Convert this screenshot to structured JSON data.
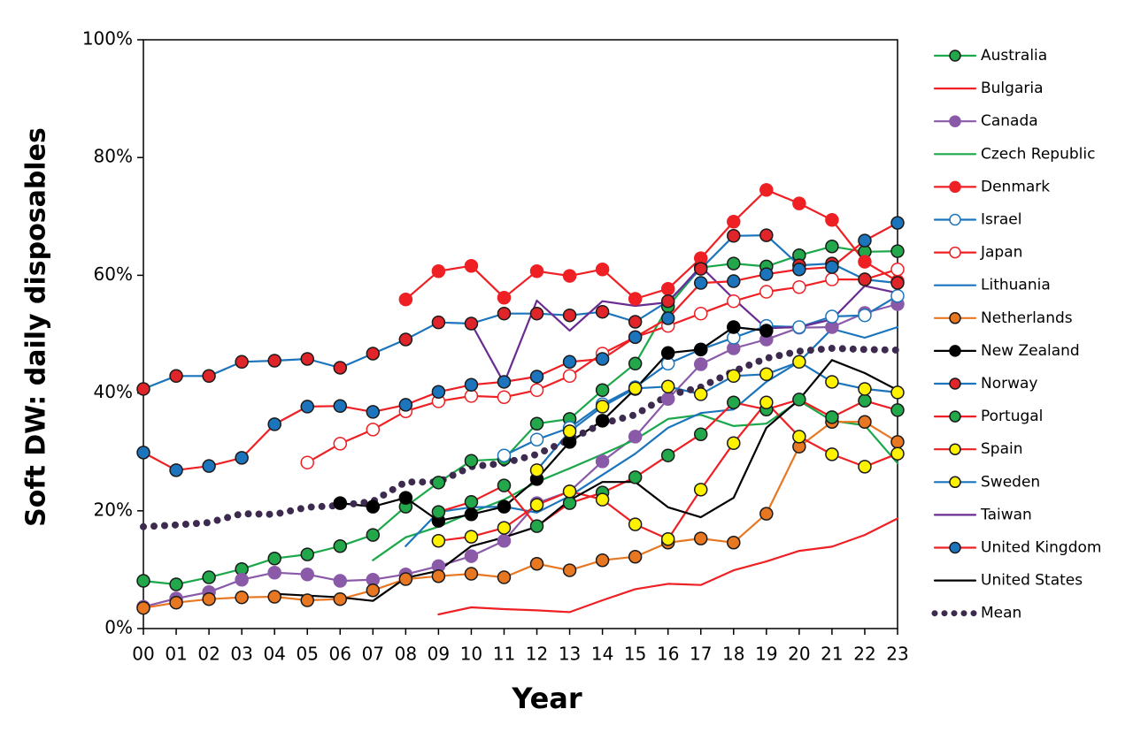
{
  "chart_data": {
    "type": "line",
    "y_label": "Soft DW: daily disposables",
    "x_label": "Year",
    "categories": [
      "00",
      "01",
      "02",
      "03",
      "04",
      "05",
      "06",
      "07",
      "08",
      "09",
      "10",
      "11",
      "12",
      "13",
      "14",
      "15",
      "16",
      "17",
      "18",
      "19",
      "20",
      "21",
      "22",
      "23"
    ],
    "ylim": [
      0,
      100
    ],
    "yticks": [
      {
        "value": 0,
        "label": "0%"
      },
      {
        "value": 20,
        "label": "20%"
      },
      {
        "value": 40,
        "label": "40%"
      },
      {
        "value": 60,
        "label": "60%"
      },
      {
        "value": 80,
        "label": "80%"
      },
      {
        "value": 100,
        "label": "100%"
      }
    ],
    "legend": "right",
    "series": [
      {
        "name": "Australia",
        "color": "#1ba84a",
        "marker": {
          "fill": "#22a84b",
          "stroke": "#1a1a1a"
        },
        "values": [
          8.1,
          7.5,
          8.7,
          10.1,
          11.9,
          12.6,
          14.0,
          15.9,
          20.7,
          24.8,
          28.5,
          28.8,
          34.8,
          35.6,
          40.5,
          45.0,
          54.7,
          61.3,
          62.0,
          61.5,
          63.4,
          64.9,
          64.0,
          64.1
        ]
      },
      {
        "name": "Bulgaria",
        "color": "#ee2024",
        "marker": null,
        "values": [
          null,
          null,
          null,
          null,
          null,
          null,
          null,
          null,
          null,
          2.4,
          3.6,
          3.3,
          3.1,
          2.8,
          4.8,
          6.7,
          7.6,
          7.4,
          9.9,
          11.4,
          13.2,
          13.9,
          15.9,
          18.7
        ]
      },
      {
        "name": "Canada",
        "color": "#8a5aa8",
        "marker": {
          "fill": "#8a5aa8",
          "stroke": "#8a5aa8"
        },
        "values": [
          3.7,
          5.1,
          6.2,
          8.3,
          9.5,
          9.2,
          8.1,
          8.3,
          9.2,
          10.6,
          12.3,
          14.9,
          21.3,
          23.3,
          28.4,
          32.6,
          39.0,
          44.9,
          47.6,
          49.1,
          51.1,
          51.2,
          53.6,
          55.1
        ]
      },
      {
        "name": "Czech Republic",
        "color": "#1ba84a",
        "marker": null,
        "values": [
          null,
          null,
          null,
          null,
          null,
          null,
          null,
          11.6,
          15.5,
          17.3,
          19.7,
          21.9,
          24.9,
          27.2,
          29.6,
          32.1,
          35.6,
          36.3,
          34.4,
          34.8,
          38.7,
          35.3,
          34.5,
          28.1
        ]
      },
      {
        "name": "Denmark",
        "color": "#ee2024",
        "marker": {
          "fill": "#ee2024",
          "stroke": "#ee2024"
        },
        "values": [
          null,
          null,
          null,
          null,
          null,
          null,
          null,
          null,
          55.9,
          60.7,
          61.6,
          56.2,
          60.7,
          59.9,
          61.0,
          56.0,
          57.7,
          62.9,
          69.1,
          74.5,
          72.2,
          69.4,
          62.3,
          59.0
        ]
      },
      {
        "name": "Israel",
        "color": "#1c75bc",
        "marker": {
          "fill": "#ffffff",
          "stroke": "#1c75bc"
        },
        "values": [
          null,
          null,
          null,
          null,
          null,
          null,
          null,
          null,
          null,
          null,
          null,
          29.4,
          32.1,
          34.1,
          38.1,
          41.0,
          45.0,
          47.4,
          49.4,
          51.4,
          51.2,
          53.0,
          53.2,
          56.5
        ]
      },
      {
        "name": "Japan",
        "color": "#ee2024",
        "marker": {
          "fill": "#ffffff",
          "stroke": "#ee2024"
        },
        "values": [
          null,
          null,
          null,
          null,
          null,
          28.2,
          31.4,
          33.8,
          36.9,
          38.6,
          39.5,
          39.3,
          40.5,
          42.9,
          46.7,
          49.5,
          51.4,
          53.5,
          55.6,
          57.2,
          58.0,
          59.3,
          59.3,
          61.0
        ]
      },
      {
        "name": "Lithuania",
        "color": "#1c75bc",
        "marker": null,
        "values": [
          null,
          null,
          null,
          null,
          null,
          null,
          null,
          null,
          14.0,
          19.8,
          20.6,
          20.7,
          19.7,
          22.5,
          26.1,
          29.7,
          34.1,
          36.6,
          37.2,
          41.9,
          45.3,
          50.9,
          49.4,
          51.2
        ]
      },
      {
        "name": "Netherlands",
        "color": "#e87722",
        "marker": {
          "fill": "#e87722",
          "stroke": "#1a1a1a"
        },
        "values": [
          3.5,
          4.4,
          5.0,
          5.3,
          5.4,
          4.8,
          5.0,
          6.5,
          8.4,
          8.9,
          9.3,
          8.7,
          11.0,
          9.9,
          11.6,
          12.2,
          14.6,
          15.3,
          14.6,
          19.5,
          30.9,
          35.1,
          35.1,
          31.7
        ]
      },
      {
        "name": "New Zealand",
        "color": "#000000",
        "marker": {
          "fill": "#000000",
          "stroke": "#000000"
        },
        "values": [
          null,
          null,
          null,
          null,
          null,
          null,
          21.3,
          20.7,
          22.2,
          18.3,
          19.4,
          20.7,
          25.4,
          31.7,
          35.3,
          40.7,
          46.8,
          47.4,
          51.2,
          50.6,
          null,
          null,
          null,
          null
        ]
      },
      {
        "name": "Norway",
        "color": "#1c75bc",
        "marker": {
          "fill": "#e0252a",
          "stroke": "#1a1a1a"
        },
        "values": [
          40.7,
          42.9,
          42.9,
          45.3,
          45.5,
          45.8,
          44.3,
          46.7,
          49.1,
          52.0,
          51.8,
          53.5,
          53.5,
          53.2,
          53.8,
          52.1,
          55.6,
          61.1,
          66.7,
          66.8,
          61.7,
          62.0,
          59.3,
          58.7
        ]
      },
      {
        "name": "Portugal",
        "color": "#ee2024",
        "marker": {
          "fill": "#22a84b",
          "stroke": "#1a1a1a"
        },
        "values": [
          null,
          null,
          null,
          null,
          null,
          null,
          null,
          null,
          null,
          19.8,
          21.5,
          24.3,
          17.4,
          21.3,
          23.1,
          25.7,
          29.4,
          33.0,
          38.4,
          37.2,
          38.9,
          35.9,
          38.7,
          37.1
        ]
      },
      {
        "name": "Spain",
        "color": "#ee2024",
        "marker": {
          "fill": "#fff200",
          "stroke": "#1a1a1a"
        },
        "values": [
          null,
          null,
          null,
          null,
          null,
          null,
          null,
          null,
          null,
          14.9,
          15.6,
          17.1,
          21.0,
          23.3,
          21.9,
          17.7,
          15.2,
          23.6,
          31.5,
          38.4,
          32.6,
          29.6,
          27.5,
          29.7
        ]
      },
      {
        "name": "Sweden",
        "color": "#1c75bc",
        "marker": {
          "fill": "#fff200",
          "stroke": "#1a1a1a"
        },
        "values": [
          null,
          null,
          null,
          null,
          null,
          null,
          null,
          null,
          null,
          null,
          null,
          null,
          26.9,
          33.5,
          37.7,
          40.8,
          41.1,
          39.8,
          42.9,
          43.2,
          45.3,
          41.9,
          40.7,
          40.1
        ]
      },
      {
        "name": "Taiwan",
        "color": "#6a2c91",
        "marker": null,
        "values": [
          null,
          null,
          null,
          null,
          null,
          null,
          null,
          null,
          null,
          null,
          51.8,
          41.7,
          55.7,
          50.6,
          55.6,
          54.8,
          55.4,
          61.5,
          56.0,
          51.0,
          51.2,
          52.5,
          58.2,
          57.0
        ]
      },
      {
        "name": "United Kingdom",
        "color": "#ee2024",
        "marker": {
          "fill": "#1c75bc",
          "stroke": "#1a1a1a"
        },
        "values": [
          29.9,
          26.9,
          27.6,
          29.0,
          34.7,
          37.7,
          37.8,
          36.8,
          38.0,
          40.2,
          41.4,
          41.9,
          42.8,
          45.3,
          45.8,
          49.5,
          52.7,
          58.7,
          59.0,
          60.2,
          61.0,
          61.4,
          65.9,
          68.9
        ]
      },
      {
        "name": "United States",
        "color": "#000000",
        "marker": null,
        "values": [
          null,
          null,
          null,
          null,
          5.9,
          5.6,
          5.3,
          4.7,
          8.6,
          9.8,
          14.0,
          15.5,
          17.3,
          21.8,
          24.9,
          24.9,
          20.6,
          18.9,
          22.2,
          34.1,
          38.9,
          45.6,
          43.4,
          40.5
        ]
      },
      {
        "name": "Mean",
        "color": "#3d2a4f",
        "marker": null,
        "style": "dotted",
        "values": [
          17.3,
          17.6,
          18.0,
          19.5,
          19.4,
          20.6,
          20.9,
          21.6,
          24.9,
          24.9,
          27.5,
          28.1,
          29.6,
          32.1,
          34.8,
          36.3,
          39.6,
          41.0,
          43.7,
          45.9,
          47.1,
          47.6,
          47.4,
          47.3
        ]
      }
    ]
  }
}
